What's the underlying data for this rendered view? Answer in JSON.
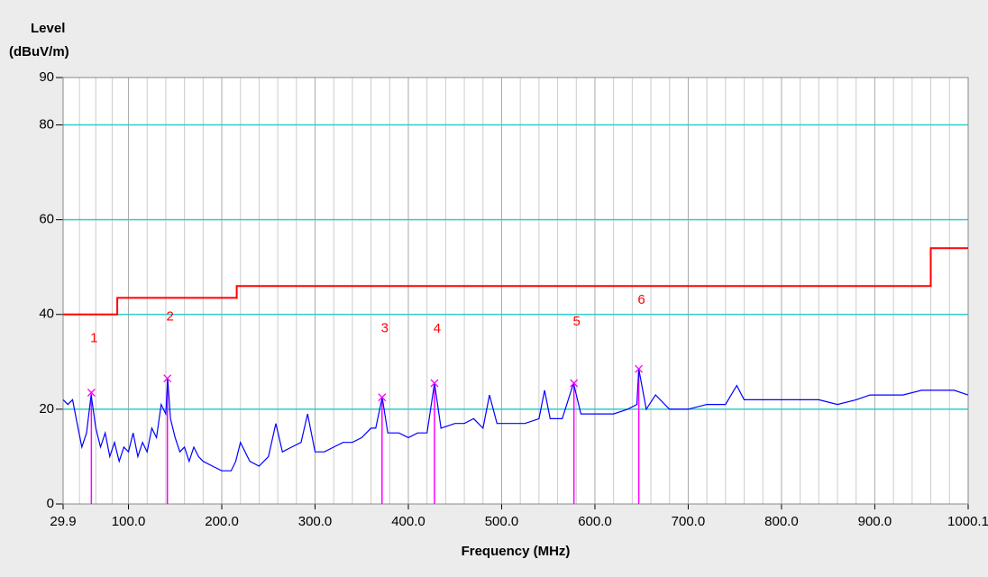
{
  "chart_data": {
    "type": "line",
    "ylabel_top": "Level",
    "ylabel_unit": "(dBuV/m)",
    "xlabel": "Frequency (MHz)",
    "xlim": [
      29.9,
      1000.1
    ],
    "ylim": [
      0,
      90
    ],
    "xticks": [
      29.9,
      {
        "value": 100,
        "label": "100.0"
      },
      {
        "value": 200,
        "label": "200.0"
      },
      {
        "value": 300,
        "label": "300.0"
      },
      {
        "value": 400,
        "label": "400.0"
      },
      {
        "value": 500,
        "label": "500.0"
      },
      {
        "value": 600,
        "label": "600.0"
      },
      {
        "value": 700,
        "label": "700.0"
      },
      {
        "value": 800,
        "label": "800.0"
      },
      {
        "value": 900,
        "label": "900.0"
      },
      1000.1
    ],
    "yticks": [
      0,
      20,
      40,
      60,
      80,
      90
    ],
    "grid": true,
    "grid_color": "#33cccc",
    "series": [
      {
        "color": "#0000ff",
        "x": [
          30,
          35,
          40,
          45,
          50,
          55,
          60,
          65,
          70,
          75,
          80,
          85,
          90,
          95,
          100,
          105,
          110,
          115,
          120,
          125,
          130,
          135,
          140,
          142,
          145,
          150,
          155,
          160,
          165,
          170,
          175,
          180,
          190,
          200,
          210,
          215,
          220,
          230,
          240,
          250,
          258,
          265,
          275,
          285,
          292,
          300,
          310,
          320,
          330,
          340,
          350,
          360,
          365,
          372,
          378,
          390,
          400,
          410,
          420,
          428,
          435,
          450,
          460,
          470,
          480,
          487,
          495,
          510,
          525,
          540,
          546,
          552,
          565,
          577,
          585,
          600,
          620,
          635,
          645,
          647,
          655,
          665,
          680,
          700,
          720,
          740,
          752,
          760,
          780,
          800,
          820,
          840,
          860,
          880,
          895,
          910,
          930,
          950,
          970,
          985,
          1000
        ],
        "values": [
          22,
          21,
          22,
          17,
          12,
          15,
          23,
          16,
          12,
          15,
          10,
          13,
          9,
          12,
          11,
          15,
          10,
          13,
          11,
          16,
          14,
          21,
          19,
          26.5,
          18,
          14,
          11,
          12,
          9,
          12,
          10,
          9,
          8,
          7,
          7,
          9,
          13,
          9,
          8,
          10,
          17,
          11,
          12,
          13,
          19,
          11,
          11,
          12,
          13,
          13,
          14,
          16,
          16,
          22.5,
          15,
          15,
          14,
          15,
          15,
          25.5,
          16,
          17,
          17,
          18,
          16,
          23,
          17,
          17,
          17,
          18,
          24,
          18,
          18,
          25.5,
          19,
          19,
          19,
          20,
          21,
          28.5,
          20,
          23,
          20,
          20,
          21,
          21,
          25,
          22,
          22,
          22,
          22,
          22,
          21,
          22,
          23,
          23,
          23,
          24,
          24,
          24,
          23
        ]
      },
      {
        "color": "#ff0000",
        "x": [
          29.9,
          88,
          88,
          216,
          216,
          960,
          960,
          1000.1
        ],
        "values": [
          40,
          40,
          43.5,
          43.5,
          46,
          46,
          54,
          54
        ]
      }
    ],
    "markers": {
      "color": "#ff00ff",
      "label_color": "#ff0000",
      "x": [
        60.2,
        141.7,
        371.8,
        428,
        577.5,
        647
      ],
      "values": [
        23.5,
        26.5,
        22.5,
        25.5,
        25.5,
        28.5
      ],
      "labels": [
        "1",
        "2",
        "3",
        "4",
        "5",
        "6"
      ]
    }
  }
}
